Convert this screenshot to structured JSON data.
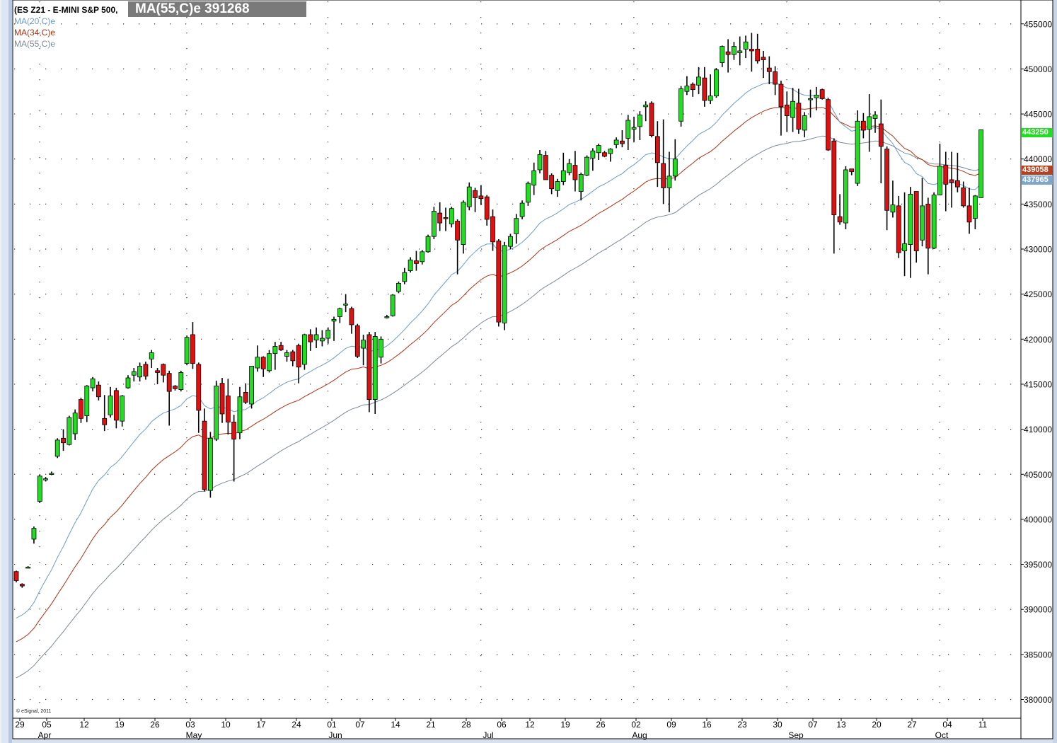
{
  "legend": {
    "title": "(ES Z21 - E-MINI S&P 500,",
    "ma20": "MA(20,C)e",
    "ma34": "MA(34,C)e",
    "ma55": "MA(55,C)e"
  },
  "tooltip": "MA(55,C)e 391268",
  "copyright": "© eSignal, 2011",
  "price_tags": {
    "last": "443250",
    "ma34": "439058",
    "ma20": "437965"
  },
  "colors": {
    "up": "#22dd22",
    "down": "#dd1111",
    "ma20": "#6c9cc8",
    "ma34": "#b03010",
    "ma55": "#7a8a98",
    "grid": "#333333",
    "tag_last": "#22dd22",
    "tag_ma34": "#b84020",
    "tag_ma20": "#7ea6c8"
  },
  "chart_data": {
    "type": "candlestick",
    "title": "(ES Z21 - E-MINI S&P 500,",
    "ylim": [
      378000,
      457000
    ],
    "y_ticks": [
      380000,
      385000,
      390000,
      395000,
      400000,
      405000,
      410000,
      415000,
      420000,
      425000,
      430000,
      435000,
      440000,
      445000,
      450000,
      455000
    ],
    "x_tick_labels": [
      "29",
      "05",
      "12",
      "19",
      "26",
      "03",
      "10",
      "17",
      "24",
      "01",
      "07",
      "14",
      "21",
      "28",
      "06",
      "12",
      "19",
      "26",
      "02",
      "09",
      "16",
      "23",
      "30",
      "07",
      "13",
      "20",
      "27",
      "04",
      "11"
    ],
    "month_labels": [
      "Apr",
      "May",
      "Jun",
      "Jul",
      "Aug",
      "Sep",
      "Oct"
    ],
    "candles": [
      [
        394200,
        394300,
        393000,
        393200
      ],
      [
        392800,
        392900,
        392400,
        392600
      ],
      [
        394700,
        394800,
        394600,
        394700
      ],
      [
        397800,
        399200,
        397300,
        399000
      ],
      [
        402000,
        405000,
        401800,
        404800
      ],
      [
        404400,
        404700,
        404200,
        404500
      ],
      [
        405000,
        405300,
        404900,
        405100
      ],
      [
        407000,
        409000,
        406800,
        408800
      ],
      [
        409000,
        410000,
        407600,
        408500
      ],
      [
        408300,
        411500,
        408200,
        411300
      ],
      [
        409500,
        412200,
        408800,
        411800
      ],
      [
        413300,
        413500,
        410700,
        411200
      ],
      [
        411500,
        414900,
        410800,
        414800
      ],
      [
        414600,
        415800,
        414200,
        415600
      ],
      [
        414900,
        415300,
        413200,
        413600
      ],
      [
        411200,
        413800,
        409800,
        410500
      ],
      [
        411600,
        414700,
        411300,
        413700
      ],
      [
        414300,
        414600,
        410100,
        411000
      ],
      [
        410900,
        413800,
        410300,
        413700
      ],
      [
        414600,
        416000,
        414500,
        415700
      ],
      [
        416000,
        416800,
        415300,
        416400
      ],
      [
        415800,
        417400,
        415300,
        417000
      ],
      [
        417200,
        417500,
        415500,
        415900
      ],
      [
        417800,
        418800,
        416800,
        418500
      ],
      [
        416500,
        416800,
        415000,
        416300
      ],
      [
        417200,
        417300,
        415200,
        416000
      ],
      [
        416200,
        416500,
        410400,
        414200
      ],
      [
        414800,
        414900,
        414300,
        414500
      ],
      [
        414400,
        416500,
        414200,
        416300
      ],
      [
        417300,
        420400,
        417100,
        420200
      ],
      [
        420500,
        421900,
        416700,
        417300
      ],
      [
        417200,
        417400,
        409600,
        412100
      ],
      [
        410900,
        412300,
        403100,
        403300
      ],
      [
        403200,
        409700,
        402400,
        409000
      ],
      [
        408900,
        415400,
        408700,
        414800
      ],
      [
        415100,
        415700,
        410700,
        411700
      ],
      [
        413700,
        415600,
        409400,
        410800
      ],
      [
        410800,
        411600,
        404200,
        408900
      ],
      [
        409600,
        414700,
        408900,
        413600
      ],
      [
        414100,
        415100,
        412800,
        413000
      ],
      [
        412800,
        416600,
        412300,
        417000
      ],
      [
        416800,
        419300,
        416400,
        418000
      ],
      [
        418000,
        418100,
        415800,
        416700
      ],
      [
        416500,
        418800,
        416300,
        418400
      ],
      [
        418400,
        419700,
        416600,
        419200
      ],
      [
        419300,
        419700,
        418700,
        418800
      ],
      [
        418100,
        418800,
        417500,
        418500
      ],
      [
        418600,
        418800,
        417000,
        417600
      ],
      [
        419300,
        419500,
        415100,
        416900
      ],
      [
        417200,
        420600,
        416600,
        420500
      ],
      [
        420500,
        421100,
        418700,
        419700
      ],
      [
        419900,
        421300,
        419000,
        420500
      ],
      [
        419800,
        421000,
        419200,
        420100
      ],
      [
        420100,
        421300,
        419500,
        421000
      ],
      [
        422000,
        422500,
        419800,
        422200
      ],
      [
        422500,
        423500,
        421800,
        423400
      ],
      [
        423800,
        425000,
        423000,
        423900
      ],
      [
        423400,
        423600,
        420600,
        421600
      ],
      [
        421500,
        421700,
        417900,
        418100
      ],
      [
        419000,
        420500,
        417100,
        419900
      ],
      [
        420500,
        420800,
        411900,
        413300
      ],
      [
        413300,
        420800,
        411700,
        420300
      ],
      [
        418000,
        420300,
        417300,
        420000
      ],
      [
        422500,
        422700,
        422300,
        422500
      ],
      [
        422600,
        425000,
        422500,
        424900
      ],
      [
        425300,
        426400,
        425100,
        426200
      ],
      [
        426400,
        427900,
        426100,
        427400
      ],
      [
        427600,
        429100,
        427400,
        428800
      ],
      [
        428700,
        429800,
        427600,
        428400
      ],
      [
        428600,
        429900,
        428300,
        429700
      ],
      [
        429700,
        431600,
        429600,
        431400
      ],
      [
        431400,
        434700,
        431100,
        434200
      ],
      [
        434000,
        435200,
        432000,
        432900
      ],
      [
        433500,
        434600,
        432000,
        433400
      ],
      [
        432800,
        434700,
        432400,
        434500
      ],
      [
        433100,
        433300,
        427200,
        431000
      ],
      [
        430500,
        435400,
        429500,
        435200
      ],
      [
        434700,
        437400,
        434300,
        436900
      ],
      [
        436500,
        436800,
        434100,
        435700
      ],
      [
        435900,
        437100,
        434900,
        435600
      ],
      [
        435800,
        436000,
        432600,
        433300
      ],
      [
        433600,
        434400,
        429800,
        430800
      ],
      [
        430900,
        431100,
        421400,
        421900
      ],
      [
        421800,
        430800,
        421000,
        430400
      ],
      [
        430300,
        431700,
        430000,
        431400
      ],
      [
        431700,
        433900,
        430600,
        433400
      ],
      [
        433600,
        435400,
        433300,
        435100
      ],
      [
        435200,
        437500,
        434800,
        437300
      ],
      [
        437100,
        439600,
        436000,
        438700
      ],
      [
        438800,
        441000,
        438400,
        440500
      ],
      [
        440400,
        440900,
        438200,
        437700
      ],
      [
        438200,
        438400,
        436100,
        436700
      ],
      [
        436500,
        437800,
        435800,
        437500
      ],
      [
        437500,
        440700,
        437100,
        438700
      ],
      [
        438500,
        440000,
        438200,
        439500
      ],
      [
        439300,
        440900,
        436400,
        437700
      ],
      [
        436400,
        438500,
        435400,
        438300
      ],
      [
        438200,
        440400,
        438100,
        440200
      ],
      [
        440100,
        441200,
        438700,
        440900
      ],
      [
        440700,
        441700,
        439900,
        441500
      ],
      [
        440700,
        440900,
        440200,
        440300
      ],
      [
        440600,
        441200,
        439700,
        441100
      ],
      [
        441600,
        442400,
        441200,
        442100
      ],
      [
        442000,
        443200,
        441300,
        441700
      ],
      [
        442300,
        444900,
        441000,
        444300
      ],
      [
        443300,
        444700,
        441900,
        443500
      ],
      [
        443600,
        445300,
        442100,
        444900
      ],
      [
        445800,
        446400,
        444200,
        446000
      ],
      [
        446200,
        446400,
        442400,
        442600
      ],
      [
        442500,
        444200,
        436900,
        439600
      ],
      [
        439500,
        444400,
        435000,
        436800
      ],
      [
        436800,
        440800,
        434100,
        438100
      ],
      [
        438100,
        442200,
        437600,
        440000
      ],
      [
        444200,
        448100,
        443600,
        447800
      ],
      [
        447500,
        449200,
        447100,
        448100
      ],
      [
        448300,
        448500,
        446900,
        447700
      ],
      [
        448200,
        450200,
        447200,
        449100
      ],
      [
        449000,
        450200,
        445800,
        446500
      ],
      [
        446500,
        449400,
        446100,
        447000
      ],
      [
        447000,
        450100,
        446800,
        449900
      ],
      [
        450700,
        452600,
        450200,
        452500
      ],
      [
        451900,
        453300,
        449600,
        451600
      ],
      [
        451600,
        453000,
        451000,
        452500
      ],
      [
        451800,
        453600,
        450400,
        452000
      ],
      [
        452200,
        453700,
        451200,
        453000
      ],
      [
        452200,
        454000,
        449700,
        452000
      ],
      [
        452200,
        453900,
        450600,
        450900
      ],
      [
        451300,
        452000,
        449000,
        451000
      ],
      [
        450100,
        451400,
        448300,
        449700
      ],
      [
        449700,
        450300,
        447100,
        448300
      ],
      [
        448300,
        448700,
        442600,
        445800
      ],
      [
        446000,
        447500,
        443000,
        444800
      ],
      [
        444600,
        447900,
        443000,
        446400
      ],
      [
        446200,
        447800,
        442800,
        443300
      ],
      [
        443200,
        445200,
        442400,
        444800
      ],
      [
        446700,
        447700,
        444600,
        446700
      ],
      [
        446800,
        448000,
        445400,
        447100
      ],
      [
        447700,
        447800,
        446600,
        446700
      ],
      [
        446600,
        446800,
        440900,
        441000
      ],
      [
        442000,
        442300,
        429500,
        433800
      ],
      [
        433600,
        436100,
        432700,
        433000
      ],
      [
        432900,
        439200,
        432200,
        438800
      ],
      [
        438900,
        438900,
        438200,
        438600
      ],
      [
        437300,
        445400,
        437000,
        444200
      ],
      [
        444200,
        445100,
        442300,
        443200
      ],
      [
        443300,
        447200,
        440800,
        444700
      ],
      [
        444500,
        445300,
        442900,
        444900
      ],
      [
        443900,
        446600,
        437300,
        441400
      ],
      [
        441100,
        441400,
        432100,
        434300
      ],
      [
        434100,
        437600,
        433500,
        434900
      ],
      [
        434800,
        435900,
        429000,
        429600
      ],
      [
        429800,
        436300,
        427000,
        430600
      ],
      [
        430500,
        436900,
        426800,
        436100
      ],
      [
        436400,
        436400,
        428500,
        429800
      ],
      [
        431000,
        437900,
        430300,
        434800
      ],
      [
        435000,
        435700,
        427200,
        430100
      ],
      [
        430100,
        436300,
        430000,
        436000
      ],
      [
        436000,
        441700,
        436000,
        439200
      ],
      [
        439300,
        440800,
        434200,
        437200
      ],
      [
        437700,
        440800,
        434600,
        437400
      ],
      [
        437600,
        440700,
        436300,
        436900
      ],
      [
        436800,
        437500,
        434600,
        434800
      ],
      [
        434800,
        436800,
        431700,
        433000
      ],
      [
        433400,
        436000,
        432200,
        435900
      ],
      [
        435700,
        443200,
        435700,
        443250
      ]
    ]
  }
}
